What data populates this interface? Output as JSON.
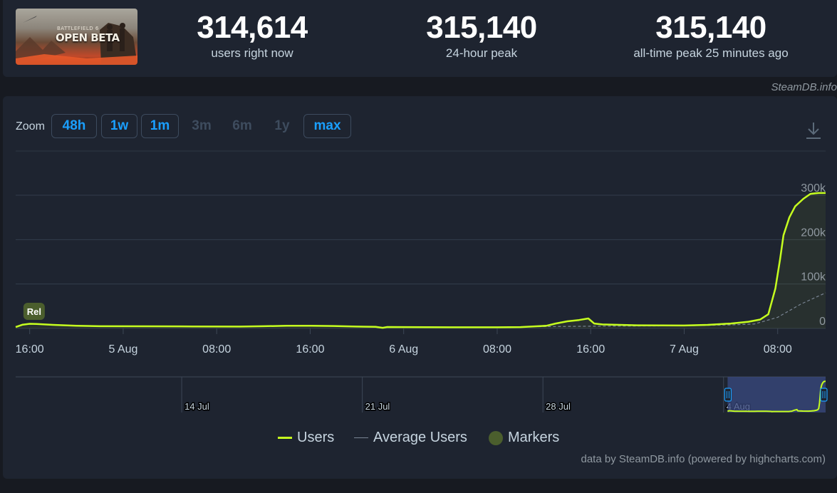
{
  "stats": {
    "current": {
      "value": "314,614",
      "label": "users right now"
    },
    "peak_24h": {
      "value": "315,140",
      "label": "24-hour peak"
    },
    "all_time": {
      "value": "315,140",
      "label": "all-time peak 25 minutes ago"
    }
  },
  "game_image": {
    "logo_small": "BATTLEFIELD 6",
    "logo_big_1": "OPEN",
    "logo_big_2": "BETA"
  },
  "credit_top": "SteamDB.info",
  "zoom": {
    "label": "Zoom",
    "buttons": [
      {
        "label": "48h",
        "state": "active"
      },
      {
        "label": "1w",
        "state": "active"
      },
      {
        "label": "1m",
        "state": "active"
      },
      {
        "label": "3m",
        "state": "disabled"
      },
      {
        "label": "6m",
        "state": "disabled"
      },
      {
        "label": "1y",
        "state": "disabled"
      },
      {
        "label": "max",
        "state": "active"
      }
    ]
  },
  "marker_label": "Rel",
  "legend": {
    "users": "Users",
    "average": "Average Users",
    "markers": "Markers"
  },
  "credit_bottom": "data by SteamDB.info (powered by highcharts.com)",
  "colors": {
    "users": "#c6ff1f",
    "average": "#7a8594",
    "marker": "#4b5e2d",
    "accent": "#1a9fff",
    "navigator_fill": "#3a4a80"
  },
  "chart_data": {
    "type": "line",
    "xlabel": "",
    "ylabel": "",
    "x_unit": "hours",
    "x_ticks": [
      {
        "x": 0,
        "label": "16:00"
      },
      {
        "x": 8,
        "label": "5 Aug"
      },
      {
        "x": 16,
        "label": "08:00"
      },
      {
        "x": 24,
        "label": "16:00"
      },
      {
        "x": 32,
        "label": "6 Aug"
      },
      {
        "x": 40,
        "label": "08:00"
      },
      {
        "x": 48,
        "label": "16:00"
      },
      {
        "x": 56,
        "label": "7 Aug"
      },
      {
        "x": 64,
        "label": "08:00"
      }
    ],
    "xlim": [
      -1.2,
      68.1
    ],
    "y_ticks": [
      {
        "y": 0,
        "label": "0"
      },
      {
        "y": 100000,
        "label": "100k"
      },
      {
        "y": 200000,
        "label": "200k"
      },
      {
        "y": 300000,
        "label": "300k"
      }
    ],
    "ylim": [
      0,
      300000
    ],
    "grid": true,
    "legend_position": "bottom",
    "series": [
      {
        "name": "Users",
        "points": [
          [
            -1.2,
            3000
          ],
          [
            -0.6,
            8500
          ],
          [
            0,
            10500
          ],
          [
            0.6,
            10000
          ],
          [
            2,
            8000
          ],
          [
            4,
            6000
          ],
          [
            6,
            5000
          ],
          [
            10,
            4800
          ],
          [
            14,
            4500
          ],
          [
            18,
            4200
          ],
          [
            20,
            5000
          ],
          [
            22,
            6000
          ],
          [
            24,
            6000
          ],
          [
            26,
            5500
          ],
          [
            28,
            4200
          ],
          [
            29.6,
            3500
          ],
          [
            30.2,
            1500
          ],
          [
            30.6,
            3200
          ],
          [
            32,
            3000
          ],
          [
            36,
            2500
          ],
          [
            40,
            2500
          ],
          [
            42,
            3000
          ],
          [
            43.5,
            5000
          ],
          [
            44.2,
            6000
          ],
          [
            45,
            11000
          ],
          [
            46,
            16000
          ],
          [
            47,
            19000
          ],
          [
            47.8,
            22500
          ],
          [
            48.3,
            11000
          ],
          [
            49,
            9000
          ],
          [
            52,
            7000
          ],
          [
            56,
            6500
          ],
          [
            58,
            8000
          ],
          [
            60,
            11000
          ],
          [
            61.5,
            15000
          ],
          [
            62.5,
            20000
          ],
          [
            63.2,
            32000
          ],
          [
            63.8,
            90000
          ],
          [
            64.2,
            155000
          ],
          [
            64.5,
            210000
          ],
          [
            65,
            250000
          ],
          [
            65.5,
            275000
          ],
          [
            66.2,
            292000
          ],
          [
            66.8,
            303000
          ],
          [
            67.5,
            305000
          ],
          [
            68.1,
            305000
          ]
        ]
      },
      {
        "name": "Average Users",
        "points": [
          [
            43.5,
            4000
          ],
          [
            48,
            5000
          ],
          [
            56,
            6000
          ],
          [
            60,
            8000
          ],
          [
            62,
            10000
          ],
          [
            64,
            25000
          ],
          [
            66,
            55000
          ],
          [
            68.1,
            80000
          ]
        ]
      }
    ],
    "markers": [
      {
        "x": -0.6,
        "label": "Rel"
      }
    ],
    "navigator": {
      "ticks": [
        {
          "x_frac": 0.205,
          "label": "14 Jul"
        },
        {
          "x_frac": 0.428,
          "label": "21 Jul"
        },
        {
          "x_frac": 0.651,
          "label": "28 Jul"
        },
        {
          "x_frac": 0.874,
          "label": "4 Aug"
        }
      ],
      "selected_range_frac": [
        0.879,
        1.0
      ]
    }
  }
}
